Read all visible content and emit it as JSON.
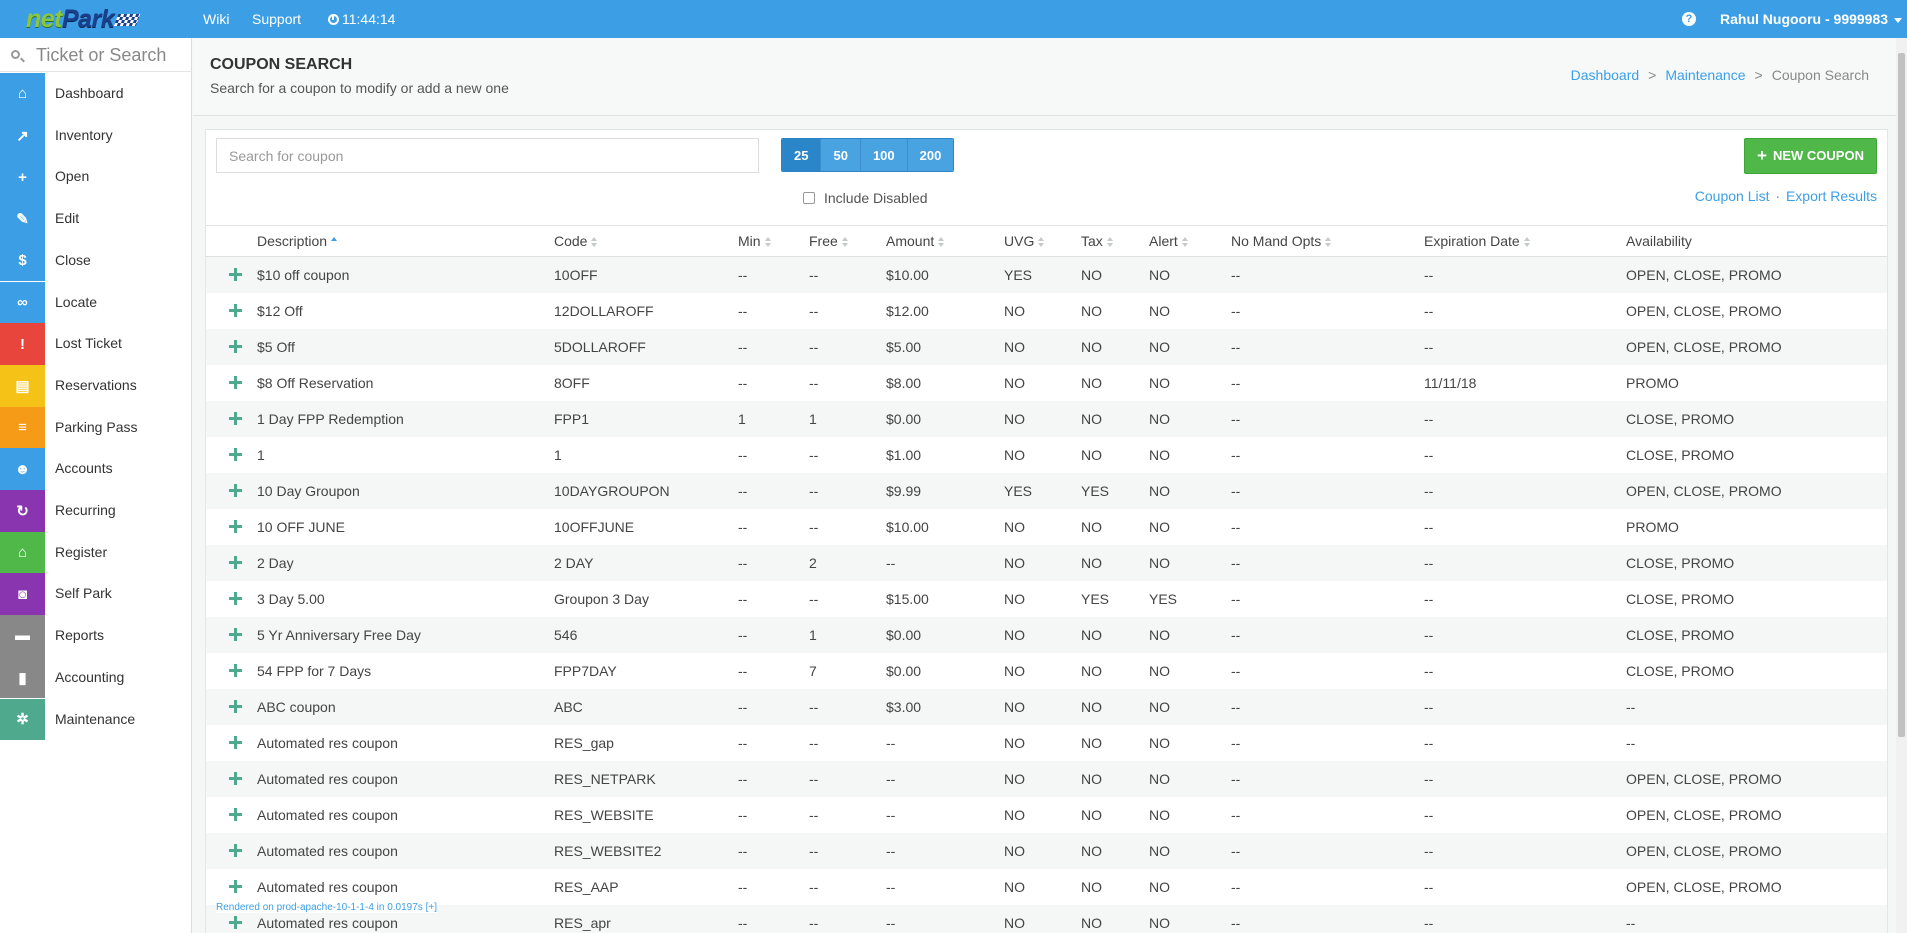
{
  "app": {
    "logo_part1": "net",
    "logo_part2": "Park",
    "nav_wiki": "Wiki",
    "nav_support": "Support",
    "clock": "11:44:14",
    "help": "?",
    "user": "Rahul Nugooru - 9999983"
  },
  "sidebar": {
    "search_placeholder": "Ticket or Search",
    "items": [
      {
        "label": "Dashboard",
        "icon": "home-icon",
        "glyph": "⌂",
        "color": "#3c9fe6"
      },
      {
        "label": "Inventory",
        "icon": "chart-line-icon",
        "glyph": "↗",
        "color": "#3c9fe6"
      },
      {
        "label": "Open",
        "icon": "plus-icon",
        "glyph": "+",
        "color": "#3c9fe6"
      },
      {
        "label": "Edit",
        "icon": "pencil-icon",
        "glyph": "✎",
        "color": "#3c9fe6"
      },
      {
        "label": "Close",
        "icon": "dollar-icon",
        "glyph": "$",
        "color": "#3c9fe6"
      },
      {
        "label": "Locate",
        "icon": "binoculars-icon",
        "glyph": "∞",
        "color": "#3c9fe6"
      },
      {
        "label": "Lost Ticket",
        "icon": "alert-icon",
        "glyph": "!",
        "color": "#e8453c"
      },
      {
        "label": "Reservations",
        "icon": "file-icon",
        "glyph": "▤",
        "color": "#f5c218"
      },
      {
        "label": "Parking Pass",
        "icon": "list-icon",
        "glyph": "≡",
        "color": "#f59b18"
      },
      {
        "label": "Accounts",
        "icon": "users-icon",
        "glyph": "☻",
        "color": "#3c9fe6"
      },
      {
        "label": "Recurring",
        "icon": "refresh-icon",
        "glyph": "↻",
        "color": "#8a35b0"
      },
      {
        "label": "Register",
        "icon": "bank-icon",
        "glyph": "⌂",
        "color": "#4fb848"
      },
      {
        "label": "Self Park",
        "icon": "car-icon",
        "glyph": "◙",
        "color": "#8a35b0"
      },
      {
        "label": "Reports",
        "icon": "folder-icon",
        "glyph": "▬",
        "color": "#888888"
      },
      {
        "label": "Accounting",
        "icon": "bar-chart-icon",
        "glyph": "▮",
        "color": "#888888"
      },
      {
        "label": "Maintenance",
        "icon": "gear-icon",
        "glyph": "✲",
        "color": "#4fa98d"
      }
    ]
  },
  "header": {
    "title": "COUPON SEARCH",
    "subtitle": "Search for a coupon to modify or add a new one",
    "breadcrumb": [
      "Dashboard",
      "Maintenance",
      "Coupon Search"
    ],
    "sep": ">"
  },
  "toolbar": {
    "search_placeholder": "Search for coupon",
    "page_sizes": [
      "25",
      "50",
      "100",
      "200"
    ],
    "active_page_size": "25",
    "include_disabled": "Include Disabled",
    "new_coupon": "NEW COUPON",
    "coupon_list": "Coupon List",
    "export_results": "Export Results",
    "link_sep": "·"
  },
  "table": {
    "columns": [
      "Description",
      "Code",
      "Min",
      "Free",
      "Amount",
      "UVG",
      "Tax",
      "Alert",
      "No Mand Opts",
      "Expiration Date",
      "Availability"
    ],
    "rows": [
      [
        "$10 off coupon",
        "10OFF",
        "--",
        "--",
        "$10.00",
        "YES",
        "NO",
        "NO",
        "--",
        "--",
        "OPEN, CLOSE, PROMO"
      ],
      [
        "$12 Off",
        "12DOLLAROFF",
        "--",
        "--",
        "$12.00",
        "NO",
        "NO",
        "NO",
        "--",
        "--",
        "OPEN, CLOSE, PROMO"
      ],
      [
        "$5 Off",
        "5DOLLAROFF",
        "--",
        "--",
        "$5.00",
        "NO",
        "NO",
        "NO",
        "--",
        "--",
        "OPEN, CLOSE, PROMO"
      ],
      [
        "$8 Off Reservation",
        "8OFF",
        "--",
        "--",
        "$8.00",
        "NO",
        "NO",
        "NO",
        "--",
        "11/11/18",
        "PROMO"
      ],
      [
        "1 Day FPP Redemption",
        "FPP1",
        "1",
        "1",
        "$0.00",
        "NO",
        "NO",
        "NO",
        "--",
        "--",
        "CLOSE, PROMO"
      ],
      [
        "1",
        "1",
        "--",
        "--",
        "$1.00",
        "NO",
        "NO",
        "NO",
        "--",
        "--",
        "CLOSE, PROMO"
      ],
      [
        "10 Day Groupon",
        "10DAYGROUPON",
        "--",
        "--",
        "$9.99",
        "YES",
        "YES",
        "NO",
        "--",
        "--",
        "OPEN, CLOSE, PROMO"
      ],
      [
        "10 OFF JUNE",
        "10OFFJUNE",
        "--",
        "--",
        "$10.00",
        "NO",
        "NO",
        "NO",
        "--",
        "--",
        "PROMO"
      ],
      [
        "2 Day",
        "2 DAY",
        "--",
        "2",
        "--",
        "NO",
        "NO",
        "NO",
        "--",
        "--",
        "CLOSE, PROMO"
      ],
      [
        "3 Day 5.00",
        "Groupon 3 Day",
        "--",
        "--",
        "$15.00",
        "NO",
        "YES",
        "YES",
        "--",
        "--",
        "CLOSE, PROMO"
      ],
      [
        "5 Yr Anniversary Free Day",
        "546",
        "--",
        "1",
        "$0.00",
        "NO",
        "NO",
        "NO",
        "--",
        "--",
        "CLOSE, PROMO"
      ],
      [
        "54 FPP for 7 Days",
        "FPP7DAY",
        "--",
        "7",
        "$0.00",
        "NO",
        "NO",
        "NO",
        "--",
        "--",
        "CLOSE, PROMO"
      ],
      [
        "ABC coupon",
        "ABC",
        "--",
        "--",
        "$3.00",
        "NO",
        "NO",
        "NO",
        "--",
        "--",
        "--"
      ],
      [
        "Automated res coupon",
        "RES_gap",
        "--",
        "--",
        "--",
        "NO",
        "NO",
        "NO",
        "--",
        "--",
        "--"
      ],
      [
        "Automated res coupon",
        "RES_NETPARK",
        "--",
        "--",
        "--",
        "NO",
        "NO",
        "NO",
        "--",
        "--",
        "OPEN, CLOSE, PROMO"
      ],
      [
        "Automated res coupon",
        "RES_WEBSITE",
        "--",
        "--",
        "--",
        "NO",
        "NO",
        "NO",
        "--",
        "--",
        "OPEN, CLOSE, PROMO"
      ],
      [
        "Automated res coupon",
        "RES_WEBSITE2",
        "--",
        "--",
        "--",
        "NO",
        "NO",
        "NO",
        "--",
        "--",
        "OPEN, CLOSE, PROMO"
      ],
      [
        "Automated res coupon",
        "RES_AAP",
        "--",
        "--",
        "--",
        "NO",
        "NO",
        "NO",
        "--",
        "--",
        "OPEN, CLOSE, PROMO"
      ],
      [
        "Automated res coupon",
        "RES_apr",
        "--",
        "--",
        "--",
        "NO",
        "NO",
        "NO",
        "--",
        "--",
        "--"
      ]
    ]
  },
  "footer": {
    "render_note": "Rendered on prod-apache-10-1-1-4 in 0.0197s [+]"
  }
}
